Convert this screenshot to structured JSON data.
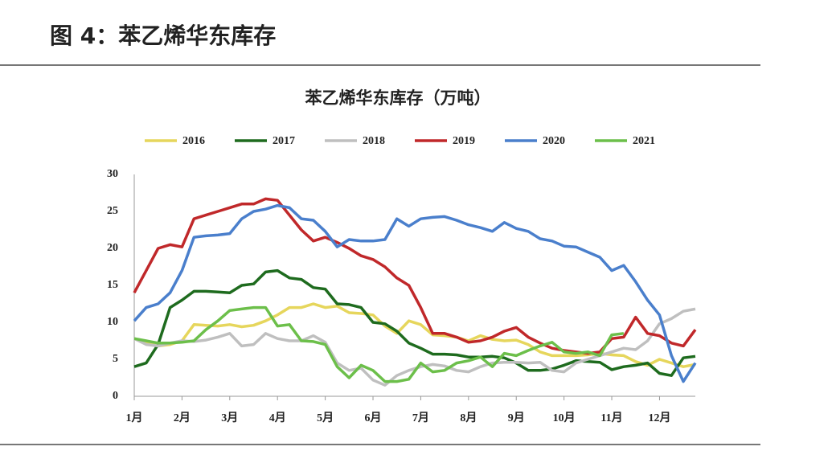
{
  "header": {
    "title": "图 4：苯乙烯华东库存"
  },
  "chart_data": {
    "type": "line",
    "title": "苯乙烯华东库存（万吨）",
    "x": [
      1,
      1.25,
      1.5,
      1.75,
      2,
      2.25,
      2.5,
      2.75,
      3,
      3.25,
      3.5,
      3.75,
      4,
      4.25,
      4.5,
      4.75,
      5,
      5.25,
      5.5,
      5.75,
      6,
      6.25,
      6.5,
      6.75,
      7,
      7.25,
      7.5,
      7.75,
      8,
      8.25,
      8.5,
      8.75,
      9,
      9.25,
      9.5,
      9.75,
      10,
      10.25,
      10.5,
      10.75,
      11,
      11.25,
      11.5,
      11.75,
      12,
      12.25,
      12.5,
      12.75
    ],
    "xlim": [
      1,
      12.75
    ],
    "xticks": [
      {
        "value": 1,
        "label": "1月"
      },
      {
        "value": 2,
        "label": "2月"
      },
      {
        "value": 3,
        "label": "3月"
      },
      {
        "value": 4,
        "label": "4月"
      },
      {
        "value": 5,
        "label": "5月"
      },
      {
        "value": 6,
        "label": "6月"
      },
      {
        "value": 7,
        "label": "7月"
      },
      {
        "value": 8,
        "label": "8月"
      },
      {
        "value": 9,
        "label": "9月"
      },
      {
        "value": 10,
        "label": "10月"
      },
      {
        "value": 11,
        "label": "11月"
      },
      {
        "value": 12,
        "label": "12月"
      }
    ],
    "ylim": [
      0,
      30
    ],
    "yticks": [
      0,
      5,
      10,
      15,
      20,
      25,
      30
    ],
    "grid": false,
    "series": [
      {
        "name": "2016",
        "color": "#e6d65c",
        "values": [
          7.8,
          7.2,
          6.8,
          7,
          7.5,
          9.7,
          9.6,
          9.5,
          9.7,
          9.4,
          9.6,
          10.2,
          11,
          12,
          12,
          12.5,
          12,
          12.2,
          11.3,
          11.2,
          11,
          9.5,
          8.5,
          10.2,
          9.7,
          8.3,
          8.2,
          8,
          7.5,
          8.2,
          7.7,
          7.5,
          7.6,
          7,
          6,
          5.5,
          5.5,
          5.5,
          5.6,
          5.8,
          5.6,
          5.5,
          4.7,
          4.2,
          5,
          4.5,
          4,
          4.3
        ]
      },
      {
        "name": "2017",
        "color": "#1e6b1e",
        "values": [
          4,
          4.5,
          7,
          12,
          13,
          14.2,
          14.2,
          14.1,
          14,
          15,
          15.2,
          16.8,
          17,
          16,
          15.8,
          14.7,
          14.5,
          12.5,
          12.4,
          12,
          10,
          9.8,
          8.8,
          7.2,
          6.5,
          5.7,
          5.7,
          5.6,
          5.3,
          5.3,
          5.4,
          5.2,
          4.5,
          3.5,
          3.5,
          3.7,
          4.2,
          4.8,
          4.7,
          4.6,
          3.6,
          4,
          4.2,
          4.5,
          3.1,
          2.8,
          5.2,
          5.4
        ]
      },
      {
        "name": "2018",
        "color": "#bfbfbf",
        "values": [
          7.8,
          7,
          6.8,
          7.2,
          7.5,
          7.4,
          7.6,
          8,
          8.5,
          6.8,
          7,
          8.5,
          7.8,
          7.5,
          7.5,
          8.2,
          7.3,
          4.5,
          3.5,
          3.8,
          2.2,
          1.5,
          2.8,
          3.5,
          4,
          4.3,
          4.1,
          3.5,
          3.3,
          4,
          4.5,
          4.6,
          4.6,
          4.5,
          4.6,
          3.5,
          3.3,
          4.5,
          5,
          5.5,
          6,
          6.5,
          6.3,
          7.5,
          9.8,
          10.5,
          11.5,
          11.8
        ]
      },
      {
        "name": "2019",
        "color": "#c0282a",
        "values": [
          14,
          17,
          20,
          20.5,
          20.2,
          24,
          24.5,
          25,
          25.5,
          26,
          26,
          26.7,
          26.5,
          24.5,
          22.5,
          21,
          21.5,
          20.8,
          20,
          19,
          18.5,
          17.5,
          16,
          15,
          12,
          8.5,
          8.5,
          8,
          7.3,
          7.5,
          8,
          8.8,
          9.3,
          8,
          7.2,
          6.5,
          6.2,
          6,
          5.8,
          6,
          7.8,
          8,
          10.7,
          8.5,
          8.2,
          7.2,
          6.8,
          9
        ]
      },
      {
        "name": "2020",
        "color": "#4a7fcc",
        "values": [
          10.2,
          12,
          12.5,
          14,
          17,
          21.5,
          21.7,
          21.8,
          22,
          24,
          25,
          25.3,
          25.8,
          25.5,
          24,
          23.8,
          22.3,
          20.2,
          21.2,
          21,
          21,
          21.2,
          24,
          23,
          24,
          24.2,
          24.3,
          23.8,
          23.2,
          22.8,
          22.3,
          23.5,
          22.7,
          22.3,
          21.3,
          21,
          20.3,
          20.2,
          19.5,
          18.8,
          17,
          17.7,
          15.5,
          13,
          11,
          5.5,
          2,
          4.5
        ]
      },
      {
        "name": "2021",
        "color": "#6cbf4a",
        "values": [
          7.8,
          7.5,
          7.2,
          7.2,
          7.3,
          7.5,
          9,
          10.2,
          11.6,
          11.8,
          12,
          12,
          9.5,
          9.7,
          7.5,
          7.4,
          7,
          4,
          2.5,
          4.2,
          3.5,
          2,
          2,
          2.3,
          4.5,
          3.3,
          3.5,
          4.5,
          4.8,
          5.3,
          4,
          5.8,
          5.5,
          6.2,
          6.8,
          7.3,
          6,
          5.8,
          6,
          5.5,
          8.3,
          8.5,
          null,
          null,
          null,
          null,
          null,
          null
        ]
      }
    ]
  }
}
